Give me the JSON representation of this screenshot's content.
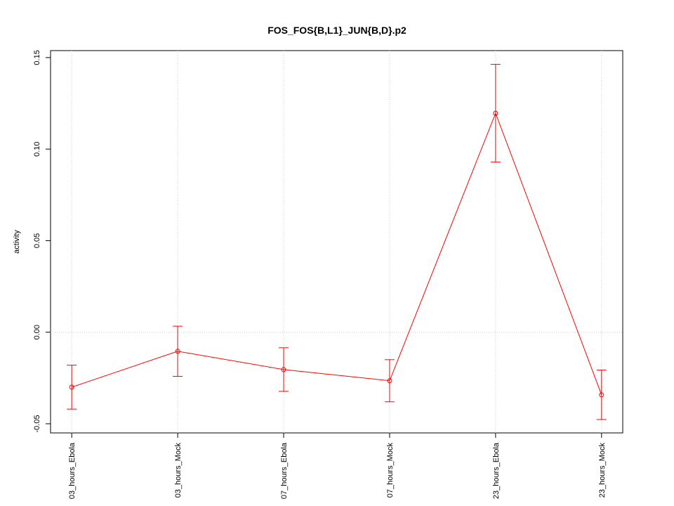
{
  "chart_data": {
    "type": "line",
    "title": "FOS_FOS{B,L1}_JUN{B,D}.p2",
    "y_label": "activity",
    "categories": [
      "03_hours_Ebola",
      "03_hours_Mock",
      "07_hours_Ebola",
      "07_hours_Mock",
      "23_hours_Ebola",
      "23_hours_Mock"
    ],
    "series": [
      {
        "color": "#ff0000",
        "values": [
          -0.03,
          -0.0104,
          -0.0204,
          -0.0265,
          0.1196,
          -0.0342
        ],
        "errors": [
          0.012,
          0.0137,
          0.0119,
          0.0115,
          0.0267,
          0.0135
        ]
      }
    ],
    "ylim": [
      -0.055,
      0.1538
    ],
    "yticks": [
      {
        "value": -0.05,
        "label": "-0.05"
      },
      {
        "value": 0,
        "label": "0.00"
      },
      {
        "value": 0.05,
        "label": "0.05"
      },
      {
        "value": 0.1,
        "label": "0.10"
      },
      {
        "value": 0.15,
        "label": "0.15"
      }
    ],
    "ygrid": [
      0
    ],
    "grid": true
  }
}
